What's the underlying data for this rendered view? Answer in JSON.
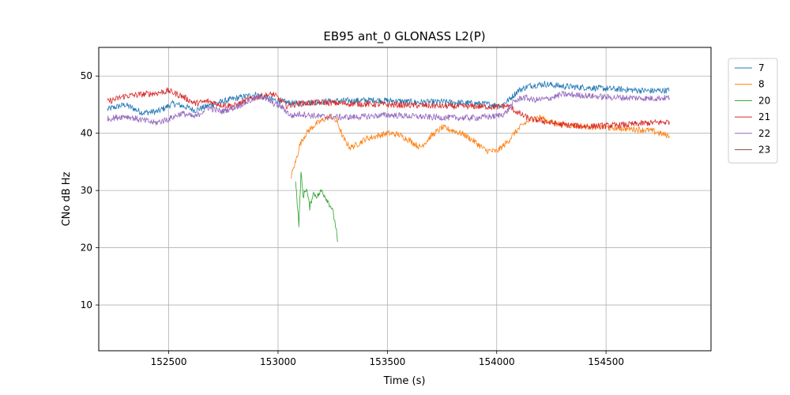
{
  "chart_data": {
    "type": "line",
    "title": "EB95 ant_0 GLONASS L2(P)",
    "xlabel": "Time (s)",
    "ylabel": "CNo dB Hz",
    "xlim": [
      152180,
      154980
    ],
    "ylim": [
      2,
      55
    ],
    "xticks": [
      152500,
      153000,
      153500,
      154000,
      154500
    ],
    "yticks": [
      10,
      20,
      30,
      40,
      50
    ],
    "grid": true,
    "legend_position": "outside-right-top",
    "series": [
      {
        "name": "7",
        "color": "#1f77b4",
        "x": [
          152220,
          152300,
          152380,
          152450,
          152520,
          152580,
          152620,
          152680,
          152750,
          152820,
          152900,
          152960,
          153020,
          153080,
          153150,
          153250,
          153350,
          153450,
          153550,
          153650,
          153750,
          153850,
          153950,
          154020,
          154060,
          154100,
          154150,
          154220,
          154300,
          154400,
          154500,
          154600,
          154700,
          154790
        ],
        "y": [
          44.2,
          45.0,
          43.6,
          43.8,
          45.2,
          44.6,
          44.0,
          44.8,
          45.6,
          46.2,
          46.8,
          46.0,
          45.5,
          45.2,
          45.4,
          45.6,
          45.7,
          45.8,
          45.6,
          45.4,
          45.5,
          45.3,
          45.1,
          44.8,
          46.0,
          47.5,
          48.3,
          48.6,
          48.2,
          48.0,
          47.8,
          47.6,
          47.4,
          47.5
        ]
      },
      {
        "name": "8",
        "color": "#ff7f0e",
        "x": [
          153060,
          153080,
          153100,
          153120,
          153140,
          153170,
          153200,
          153240,
          153270,
          153300,
          153330,
          153360,
          153400,
          153450,
          153500,
          153550,
          153600,
          153650,
          153700,
          153750,
          153800,
          153850,
          153900,
          153950,
          154000,
          154050,
          154080,
          154120,
          154160,
          154200,
          154240,
          154300,
          154400,
          154500,
          154600,
          154700,
          154790
        ],
        "y": [
          32.5,
          35.0,
          38.0,
          39.5,
          40.5,
          41.5,
          42.2,
          43.0,
          42.0,
          39.0,
          37.5,
          38.0,
          39.0,
          39.5,
          40.0,
          39.8,
          38.8,
          37.5,
          39.5,
          41.0,
          40.5,
          39.8,
          38.5,
          37.0,
          36.8,
          38.5,
          40.0,
          41.5,
          42.5,
          42.8,
          42.0,
          41.5,
          41.2,
          41.0,
          40.8,
          40.5,
          39.5
        ]
      },
      {
        "name": "20",
        "color": "#2ca02c",
        "x": [
          153080,
          153095,
          153105,
          153115,
          153130,
          153145,
          153160,
          153180,
          153200,
          153215,
          153230,
          153245,
          153255,
          153265,
          153272
        ],
        "y": [
          32.0,
          24.0,
          33.0,
          29.0,
          30.5,
          27.0,
          29.5,
          29.0,
          30.0,
          29.0,
          28.0,
          27.0,
          25.5,
          23.5,
          21.0
        ]
      },
      {
        "name": "21",
        "color": "#d62728",
        "x": [
          152220,
          152300,
          152380,
          152440,
          152500,
          152560,
          152620,
          152680,
          152740,
          152800,
          152860,
          152920,
          152980,
          153040,
          153100,
          153200,
          153300,
          153400,
          153500,
          153600,
          153700,
          153800,
          153900,
          154000,
          154050,
          154100,
          154150,
          154200,
          154250,
          154300,
          154400,
          154500,
          154600,
          154700,
          154790
        ],
        "y": [
          45.5,
          46.5,
          46.8,
          47.0,
          47.4,
          46.5,
          45.2,
          45.6,
          45.0,
          44.8,
          45.8,
          46.5,
          46.8,
          44.8,
          45.2,
          45.4,
          45.2,
          45.1,
          45.0,
          44.9,
          44.8,
          44.7,
          44.7,
          44.6,
          44.8,
          43.5,
          42.5,
          42.2,
          41.8,
          41.5,
          41.2,
          41.3,
          41.5,
          41.8,
          42.0
        ]
      },
      {
        "name": "22",
        "color": "#9467bd",
        "x": [
          152220,
          152300,
          152380,
          152440,
          152500,
          152560,
          152620,
          152680,
          152740,
          152800,
          152860,
          152920,
          152980,
          153020,
          153060,
          153100,
          153200,
          153300,
          153400,
          153500,
          153600,
          153700,
          153800,
          153900,
          154000,
          154040,
          154080,
          154120,
          154170,
          154230,
          154300,
          154400,
          154500,
          154600,
          154700,
          154790
        ],
        "y": [
          42.5,
          43.0,
          42.3,
          41.8,
          42.5,
          43.5,
          42.8,
          44.5,
          43.8,
          44.5,
          45.5,
          46.5,
          45.2,
          44.5,
          43.0,
          43.4,
          42.9,
          42.8,
          42.9,
          43.2,
          43.0,
          42.8,
          42.7,
          42.7,
          43.0,
          43.5,
          45.5,
          46.3,
          45.8,
          46.0,
          46.8,
          46.6,
          46.3,
          46.2,
          46.1,
          46.2
        ]
      },
      {
        "name": "23",
        "color": "#8c564b",
        "x": [],
        "y": []
      }
    ]
  }
}
